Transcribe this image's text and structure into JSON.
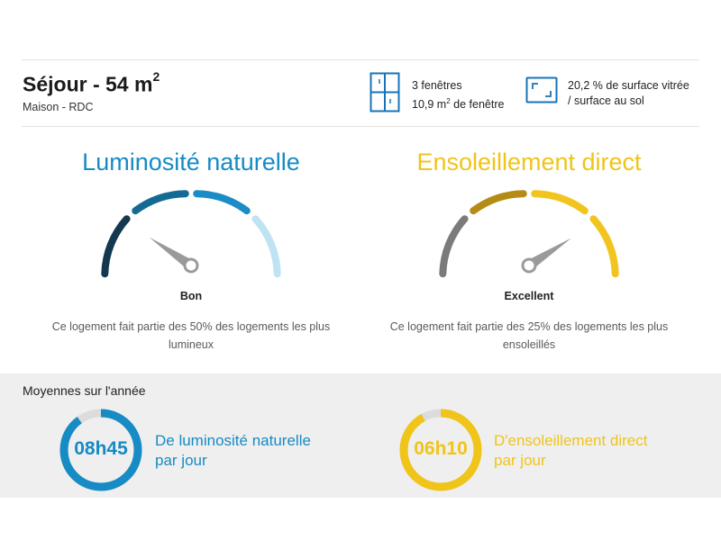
{
  "room": {
    "title": "Séjour - 54 m",
    "title_sup": "2",
    "subtitle": "Maison - RDC"
  },
  "stats": {
    "windows": {
      "icon": "window-icon",
      "line1": "3 fenêtres",
      "line2_pre": "10,9 m",
      "line2_sup": "2",
      "line2_post": " de fenêtre"
    },
    "glazing": {
      "icon": "glazed-surface-icon",
      "line1": "20,2 % de surface vitrée",
      "line2": "/ surface au sol"
    }
  },
  "gauges": {
    "luminosity": {
      "title": "Luminosité naturelle",
      "rating": "Bon",
      "description": "Ce logement fait partie des 50% des logements les plus lumineux",
      "color": "#168bc4",
      "segment_colors": [
        "#13384f",
        "#146a94",
        "#1c8cc6",
        "#bfe3f3"
      ]
    },
    "sunshine": {
      "title": "Ensoleillement direct",
      "rating": "Excellent",
      "description": "Ce logement fait partie des 25% des logements les plus ensoleillés",
      "color": "#f0c419",
      "segment_colors": [
        "#7b7b7b",
        "#b48b14",
        "#f2c41e",
        "#f2c41e"
      ]
    }
  },
  "averages": {
    "heading": "Moyennes sur l'année",
    "luminosity": {
      "time": "08h45",
      "label_line1": "De luminosité naturelle",
      "label_line2": "par jour",
      "color": "#168bc4",
      "fraction": 0.9
    },
    "sunshine": {
      "time": "06h10",
      "label_line1": "D'ensoleillement direct",
      "label_line2": "par jour",
      "color": "#f0c419",
      "fraction": 0.92
    }
  }
}
